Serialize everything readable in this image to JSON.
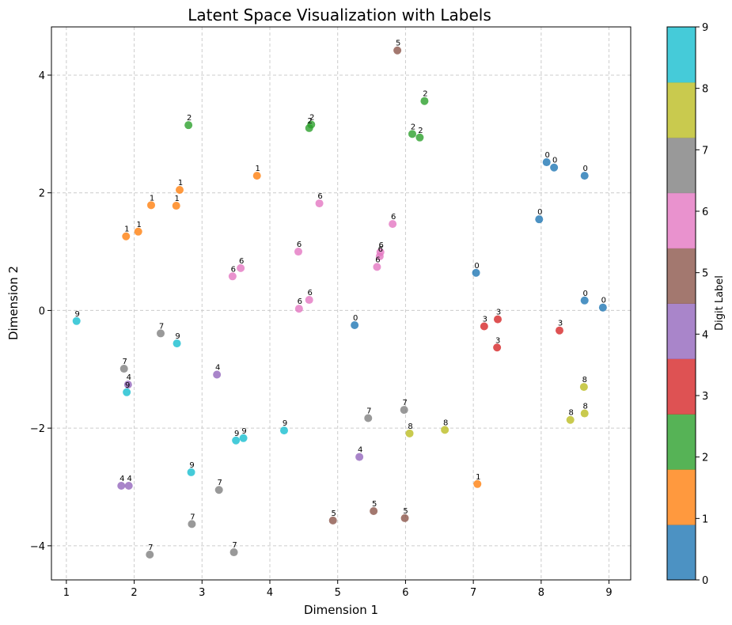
{
  "chart_data": {
    "type": "scatter",
    "title": "Latent Space Visualization with Labels",
    "xlabel": "Dimension 1",
    "ylabel": "Dimension 2",
    "xlim": [
      0.78,
      9.32
    ],
    "ylim": [
      -4.58,
      4.82
    ],
    "xticks": [
      1,
      2,
      3,
      4,
      5,
      6,
      7,
      8,
      9
    ],
    "yticks": [
      -4,
      -2,
      0,
      2,
      4
    ],
    "grid": true,
    "colormap": "tab10",
    "colorbar": {
      "label": "Digit Label",
      "ticks": [
        0,
        1,
        2,
        3,
        4,
        5,
        6,
        7,
        8,
        9
      ],
      "colors": [
        "#1f77b4",
        "#ff7f0e",
        "#2ca02c",
        "#d62728",
        "#9467bd",
        "#8c564b",
        "#e377c2",
        "#7f7f7f",
        "#bcbd22",
        "#17becf"
      ]
    },
    "points": [
      {
        "x": 8.08,
        "y": 2.52,
        "label": 0
      },
      {
        "x": 8.19,
        "y": 2.43,
        "label": 0
      },
      {
        "x": 8.64,
        "y": 2.29,
        "label": 0
      },
      {
        "x": 7.97,
        "y": 1.55,
        "label": 0
      },
      {
        "x": 7.04,
        "y": 0.64,
        "label": 0
      },
      {
        "x": 8.64,
        "y": 0.17,
        "label": 0
      },
      {
        "x": 8.91,
        "y": 0.05,
        "label": 0
      },
      {
        "x": 5.25,
        "y": -0.25,
        "label": 0
      },
      {
        "x": 3.81,
        "y": 2.29,
        "label": 1
      },
      {
        "x": 2.67,
        "y": 2.05,
        "label": 1
      },
      {
        "x": 2.25,
        "y": 1.79,
        "label": 1
      },
      {
        "x": 2.62,
        "y": 1.78,
        "label": 1
      },
      {
        "x": 2.06,
        "y": 1.34,
        "label": 1
      },
      {
        "x": 1.88,
        "y": 1.26,
        "label": 1
      },
      {
        "x": 7.06,
        "y": -2.95,
        "label": 1
      },
      {
        "x": 2.8,
        "y": 3.15,
        "label": 2
      },
      {
        "x": 4.61,
        "y": 3.16,
        "label": 2
      },
      {
        "x": 4.58,
        "y": 3.1,
        "label": 2
      },
      {
        "x": 6.28,
        "y": 3.56,
        "label": 2
      },
      {
        "x": 6.1,
        "y": 3.0,
        "label": 2
      },
      {
        "x": 6.21,
        "y": 2.94,
        "label": 2
      },
      {
        "x": 7.36,
        "y": -0.15,
        "label": 3
      },
      {
        "x": 7.16,
        "y": -0.27,
        "label": 3
      },
      {
        "x": 8.27,
        "y": -0.34,
        "label": 3
      },
      {
        "x": 7.35,
        "y": -0.63,
        "label": 3
      },
      {
        "x": 3.22,
        "y": -1.09,
        "label": 4
      },
      {
        "x": 1.91,
        "y": -1.26,
        "label": 4
      },
      {
        "x": 5.32,
        "y": -2.49,
        "label": 4
      },
      {
        "x": 1.81,
        "y": -2.98,
        "label": 4
      },
      {
        "x": 1.92,
        "y": -2.98,
        "label": 4
      },
      {
        "x": 5.88,
        "y": 4.42,
        "label": 5
      },
      {
        "x": 4.93,
        "y": -3.57,
        "label": 5
      },
      {
        "x": 5.53,
        "y": -3.41,
        "label": 5
      },
      {
        "x": 5.99,
        "y": -3.53,
        "label": 5
      },
      {
        "x": 4.73,
        "y": 1.82,
        "label": 6
      },
      {
        "x": 5.81,
        "y": 1.47,
        "label": 6
      },
      {
        "x": 4.42,
        "y": 1.0,
        "label": 6
      },
      {
        "x": 5.63,
        "y": 0.99,
        "label": 6
      },
      {
        "x": 5.62,
        "y": 0.92,
        "label": 6
      },
      {
        "x": 5.58,
        "y": 0.74,
        "label": 6
      },
      {
        "x": 3.57,
        "y": 0.72,
        "label": 6
      },
      {
        "x": 3.45,
        "y": 0.58,
        "label": 6
      },
      {
        "x": 4.58,
        "y": 0.18,
        "label": 6
      },
      {
        "x": 4.43,
        "y": 0.03,
        "label": 6
      },
      {
        "x": 2.39,
        "y": -0.39,
        "label": 7
      },
      {
        "x": 1.85,
        "y": -0.99,
        "label": 7
      },
      {
        "x": 5.98,
        "y": -1.69,
        "label": 7
      },
      {
        "x": 5.45,
        "y": -1.83,
        "label": 7
      },
      {
        "x": 3.25,
        "y": -3.05,
        "label": 7
      },
      {
        "x": 2.85,
        "y": -3.63,
        "label": 7
      },
      {
        "x": 2.23,
        "y": -4.15,
        "label": 7
      },
      {
        "x": 3.47,
        "y": -4.11,
        "label": 7
      },
      {
        "x": 8.63,
        "y": -1.3,
        "label": 8
      },
      {
        "x": 8.64,
        "y": -1.75,
        "label": 8
      },
      {
        "x": 8.43,
        "y": -1.86,
        "label": 8
      },
      {
        "x": 6.58,
        "y": -2.03,
        "label": 8
      },
      {
        "x": 6.06,
        "y": -2.09,
        "label": 8
      },
      {
        "x": 1.15,
        "y": -0.18,
        "label": 9
      },
      {
        "x": 2.63,
        "y": -0.56,
        "label": 9
      },
      {
        "x": 1.89,
        "y": -1.39,
        "label": 9
      },
      {
        "x": 4.21,
        "y": -2.04,
        "label": 9
      },
      {
        "x": 3.61,
        "y": -2.17,
        "label": 9
      },
      {
        "x": 3.5,
        "y": -2.21,
        "label": 9
      },
      {
        "x": 2.84,
        "y": -2.75,
        "label": 9
      }
    ]
  }
}
